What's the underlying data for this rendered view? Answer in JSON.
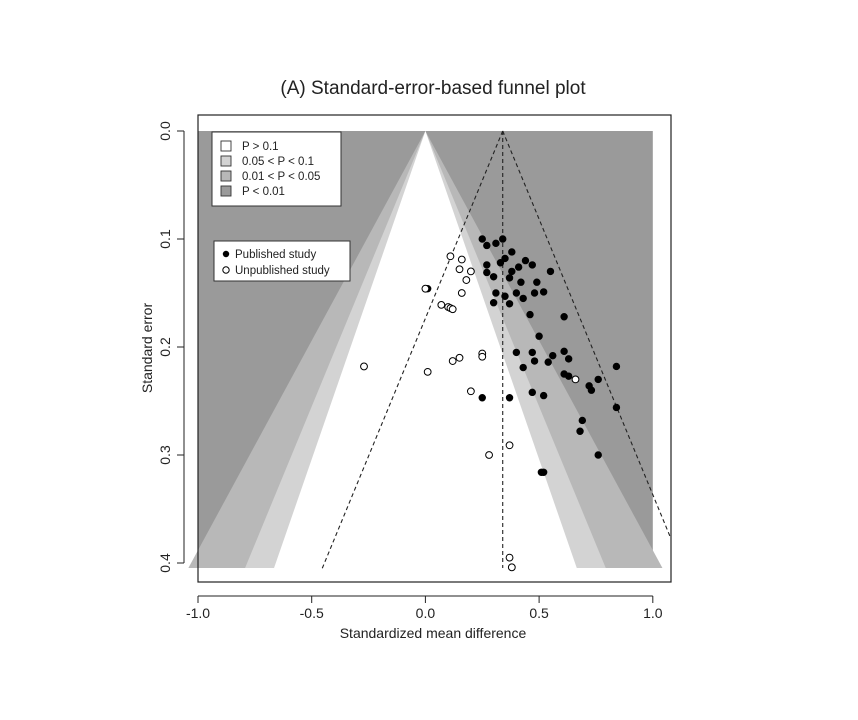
{
  "chart_data": {
    "type": "scatter",
    "title": "(A) Standard-error-based funnel plot",
    "xlabel": "Standardized mean difference",
    "ylabel": "Standard error",
    "xlim": [
      -1.0,
      1.08
    ],
    "ylim": [
      0.405,
      0.0
    ],
    "x_ticks": [
      "-1.0",
      "-0.5",
      "0.0",
      "0.5",
      "1.0"
    ],
    "x_tick_values": [
      -1.0,
      -0.5,
      0.0,
      0.5,
      1.0
    ],
    "y_ticks": [
      "0.0",
      "0.1",
      "0.2",
      "0.3",
      "0.4"
    ],
    "y_tick_values": [
      0.0,
      0.1,
      0.2,
      0.3,
      0.4
    ],
    "contour_center": 0.0,
    "contour_zs": [
      2.576,
      1.96,
      1.645
    ],
    "pooled_estimate": 0.34,
    "legend_contours": {
      "placement": "top-left",
      "entries": [
        {
          "label": "P > 0.1",
          "color": "#ffffff"
        },
        {
          "label": "0.05 < P < 0.1",
          "color": "#d3d3d3"
        },
        {
          "label": "0.01 < P < 0.05",
          "color": "#b8b8b8"
        },
        {
          "label": "P < 0.01",
          "color": "#9a9a9a"
        }
      ]
    },
    "legend_points": {
      "placement": "left",
      "entries": [
        {
          "label": "Published study",
          "style": "filled"
        },
        {
          "label": "Unpublished study",
          "style": "open"
        }
      ]
    },
    "series": [
      {
        "name": "Published study",
        "style": "filled",
        "points": [
          [
            0.25,
            0.1
          ],
          [
            0.27,
            0.106
          ],
          [
            0.31,
            0.104
          ],
          [
            0.34,
            0.1
          ],
          [
            0.38,
            0.112
          ],
          [
            0.27,
            0.124
          ],
          [
            0.27,
            0.131
          ],
          [
            0.33,
            0.122
          ],
          [
            0.35,
            0.118
          ],
          [
            0.38,
            0.13
          ],
          [
            0.41,
            0.126
          ],
          [
            0.44,
            0.12
          ],
          [
            0.47,
            0.124
          ],
          [
            0.3,
            0.135
          ],
          [
            0.37,
            0.136
          ],
          [
            0.42,
            0.14
          ],
          [
            0.49,
            0.14
          ],
          [
            0.55,
            0.13
          ],
          [
            0.31,
            0.15
          ],
          [
            0.3,
            0.159
          ],
          [
            0.35,
            0.153
          ],
          [
            0.37,
            0.16
          ],
          [
            0.4,
            0.15
          ],
          [
            0.43,
            0.155
          ],
          [
            0.48,
            0.15
          ],
          [
            0.52,
            0.149
          ],
          [
            0.01,
            0.146
          ],
          [
            0.46,
            0.17
          ],
          [
            0.61,
            0.172
          ],
          [
            0.5,
            0.19
          ],
          [
            0.4,
            0.205
          ],
          [
            0.47,
            0.205
          ],
          [
            0.56,
            0.208
          ],
          [
            0.61,
            0.204
          ],
          [
            0.63,
            0.211
          ],
          [
            0.43,
            0.219
          ],
          [
            0.48,
            0.213
          ],
          [
            0.54,
            0.214
          ],
          [
            0.61,
            0.225
          ],
          [
            0.63,
            0.227
          ],
          [
            0.76,
            0.23
          ],
          [
            0.84,
            0.218
          ],
          [
            0.72,
            0.236
          ],
          [
            0.73,
            0.24
          ],
          [
            0.47,
            0.242
          ],
          [
            0.52,
            0.245
          ],
          [
            0.25,
            0.247
          ],
          [
            0.37,
            0.247
          ],
          [
            0.84,
            0.256
          ],
          [
            0.69,
            0.268
          ],
          [
            0.68,
            0.278
          ],
          [
            0.76,
            0.3
          ],
          [
            0.51,
            0.316
          ],
          [
            0.52,
            0.316
          ]
        ]
      },
      {
        "name": "Unpublished study",
        "style": "open",
        "points": [
          [
            0.11,
            0.116
          ],
          [
            0.16,
            0.119
          ],
          [
            0.15,
            0.128
          ],
          [
            0.2,
            0.13
          ],
          [
            0.18,
            0.138
          ],
          [
            0.16,
            0.15
          ],
          [
            0.0,
            0.146
          ],
          [
            0.07,
            0.161
          ],
          [
            0.1,
            0.163
          ],
          [
            0.11,
            0.164
          ],
          [
            0.12,
            0.165
          ],
          [
            -0.27,
            0.218
          ],
          [
            0.01,
            0.223
          ],
          [
            0.12,
            0.213
          ],
          [
            0.15,
            0.21
          ],
          [
            0.25,
            0.206
          ],
          [
            0.25,
            0.209
          ],
          [
            0.2,
            0.241
          ],
          [
            0.37,
            0.291
          ],
          [
            0.28,
            0.3
          ],
          [
            0.66,
            0.23
          ],
          [
            0.37,
            0.395
          ],
          [
            0.38,
            0.404
          ]
        ]
      }
    ]
  }
}
